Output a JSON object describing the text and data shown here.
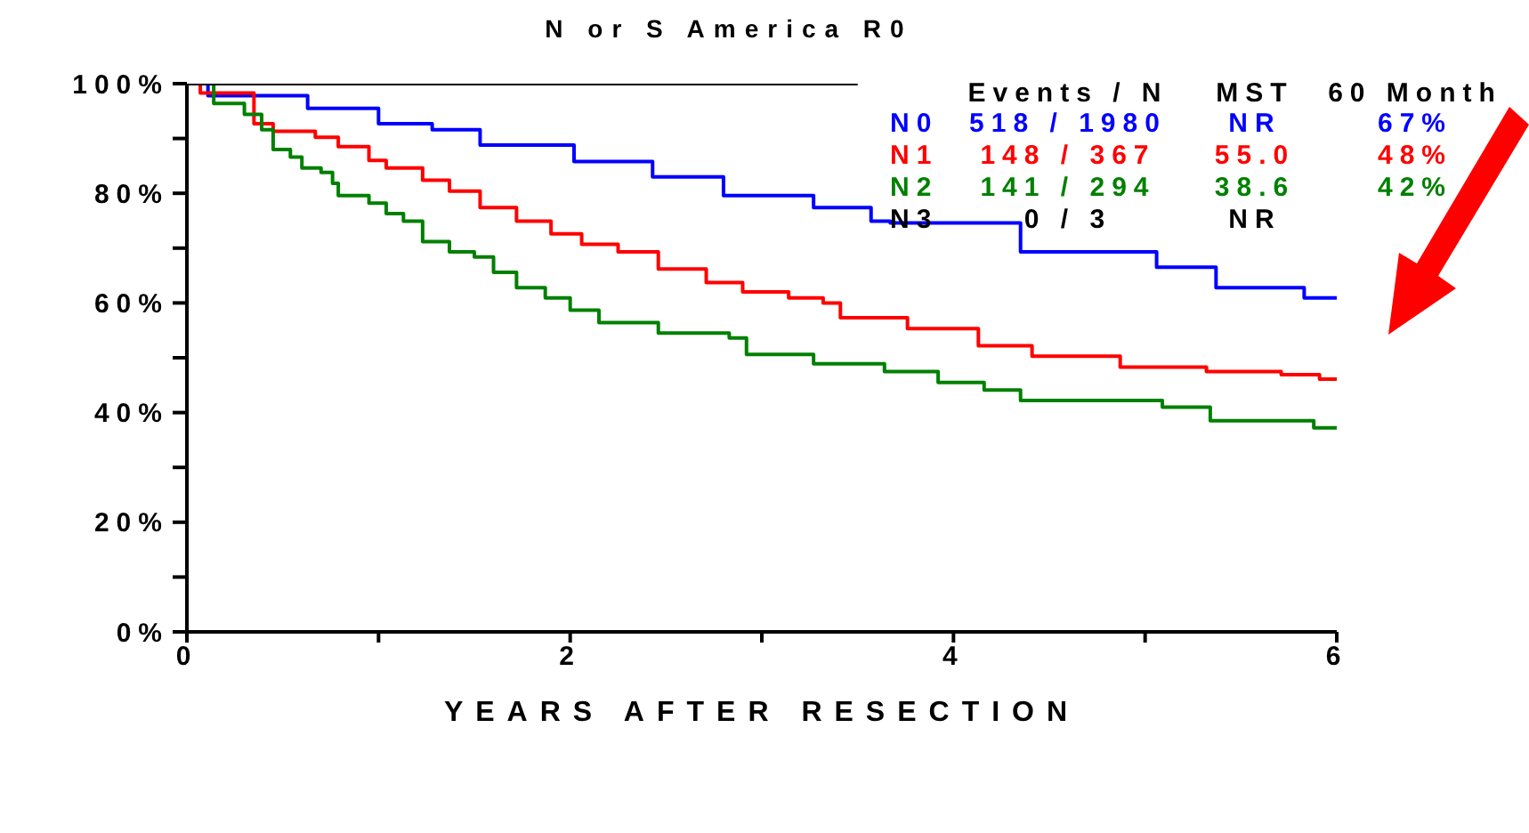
{
  "chart_data": {
    "type": "step",
    "title": "N or S America R0",
    "xlabel": "YEARS AFTER RESECTION",
    "xlim": [
      0,
      6
    ],
    "xticks": [
      0,
      {
        "value": 1,
        "label": null
      },
      2,
      {
        "value": 3,
        "label": null
      },
      4,
      {
        "value": 5,
        "label": null
      },
      6
    ],
    "ylim": [
      0,
      100
    ],
    "yticks": [
      {
        "value": 0,
        "label": "0%"
      },
      {
        "value": 10,
        "label": null
      },
      {
        "value": 20,
        "label": "20%"
      },
      {
        "value": 30,
        "label": null
      },
      {
        "value": 40,
        "label": "40%"
      },
      {
        "value": 50,
        "label": null
      },
      {
        "value": 60,
        "label": "60%"
      },
      {
        "value": 70,
        "label": null
      },
      {
        "value": 80,
        "label": "80%"
      },
      {
        "value": 90,
        "label": null
      },
      {
        "value": 100,
        "label": "100%"
      }
    ],
    "legend": "top right",
    "marker": "none",
    "line_style": "solid",
    "annotations": [
      "Events / N",
      "MST",
      "60 Month",
      "518 / 1980",
      "NR",
      "67%",
      "148 / 367",
      "55.0",
      "48%",
      "141 / 294",
      "38.6",
      "42%",
      "0 / 3",
      "NR"
    ],
    "series": [
      {
        "name": "N0",
        "color": "#0000ff",
        "x": [
          0,
          0.11,
          0.63,
          1.0,
          1.28,
          1.53,
          2.02,
          2.43,
          2.8,
          3.27,
          3.57,
          3.67,
          4.35,
          5.06,
          5.37,
          5.83,
          6.0
        ],
        "values": [
          100,
          97.8,
          95.5,
          92.7,
          91.6,
          88.8,
          85.8,
          83,
          79.6,
          77.4,
          74.9,
          74.6,
          69.3,
          66.5,
          62.8,
          60.9,
          60.6
        ]
      },
      {
        "name": "N1",
        "color": "#ff0000",
        "x": [
          0,
          0.07,
          0.35,
          0.45,
          0.67,
          0.79,
          0.95,
          1.04,
          1.23,
          1.37,
          1.53,
          1.72,
          1.9,
          2.06,
          2.25,
          2.46,
          2.71,
          2.9,
          3.14,
          3.32,
          3.41,
          3.76,
          4.13,
          4.41,
          4.87,
          5.32,
          5.71,
          5.91,
          6.0
        ],
        "values": [
          100,
          98.3,
          92.7,
          91.3,
          90.2,
          88.5,
          86,
          84.6,
          82.4,
          80.4,
          77.4,
          74.9,
          72.6,
          70.7,
          69.3,
          66.2,
          63.7,
          62,
          60.9,
          60,
          57.3,
          55.3,
          52.2,
          50.3,
          48.3,
          47.5,
          46.9,
          46.1,
          46.1
        ]
      },
      {
        "name": "N2",
        "color": "#008000",
        "x": [
          0,
          0.14,
          0.3,
          0.39,
          0.45,
          0.54,
          0.6,
          0.7,
          0.76,
          0.79,
          0.95,
          1.04,
          1.13,
          1.23,
          1.37,
          1.5,
          1.6,
          1.72,
          1.87,
          2.0,
          2.15,
          2.46,
          2.83,
          2.92,
          3.27,
          3.64,
          3.92,
          4.16,
          4.35,
          5.09,
          5.34,
          5.88,
          6.0
        ],
        "values": [
          100,
          96.4,
          94.4,
          91.6,
          88,
          86.6,
          84.6,
          83.8,
          81.8,
          79.6,
          78.2,
          76.3,
          74.9,
          71.2,
          69.3,
          68.4,
          65.6,
          62.8,
          60.9,
          58.7,
          56.4,
          54.5,
          53.6,
          50.6,
          48.9,
          47.5,
          45.5,
          44.1,
          42.2,
          41,
          38.5,
          37.2,
          37.2
        ]
      },
      {
        "name": "N3",
        "color": "#000000",
        "x": [
          0,
          3.5
        ],
        "values": [
          100,
          100
        ]
      }
    ]
  }
}
